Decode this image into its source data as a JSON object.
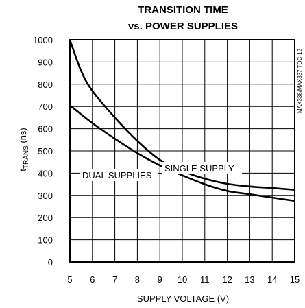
{
  "chart_data": {
    "type": "line",
    "title_line1": "TRANSITION TIME",
    "title_line2": "vs. POWER SUPPLIES",
    "xlabel": "SUPPLY VOLTAGE (V)",
    "ylabel_main": "t",
    "ylabel_sub": "TRANS",
    "ylabel_unit": " (ns)",
    "xlim": [
      5,
      15
    ],
    "ylim": [
      0,
      1000
    ],
    "x_ticks": [
      5,
      6,
      7,
      8,
      9,
      10,
      11,
      12,
      13,
      14,
      15
    ],
    "y_ticks": [
      0,
      100,
      200,
      300,
      400,
      500,
      600,
      700,
      800,
      900,
      1000
    ],
    "grid": true,
    "side_code": "MAX336/MAX337 TOC-12",
    "series": [
      {
        "name": "SINGLE SUPPLY",
        "x": [
          5,
          5.5,
          6,
          7,
          8,
          9,
          10,
          11,
          12,
          13,
          14,
          15
        ],
        "y": [
          1000,
          860,
          770,
          650,
          545,
          460,
          410,
          375,
          352,
          340,
          333,
          325
        ]
      },
      {
        "name": "DUAL SUPPLIES",
        "x": [
          5,
          6,
          7,
          8,
          9,
          10,
          11,
          12,
          13,
          14,
          15
        ],
        "y": [
          705,
          625,
          555,
          490,
          435,
          390,
          350,
          320,
          305,
          290,
          275
        ]
      }
    ]
  }
}
